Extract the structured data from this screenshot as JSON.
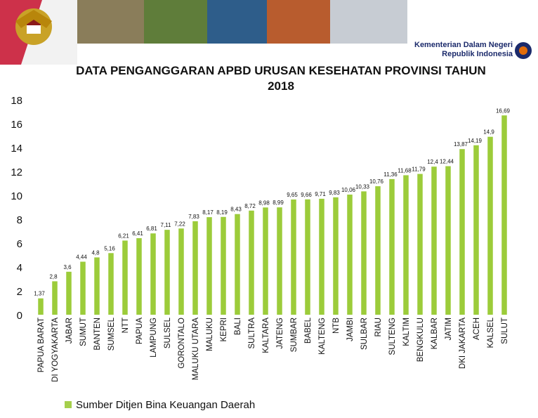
{
  "header": {
    "ministry_line1": "Kementerian Dalam Negeri",
    "ministry_line2": "Republik Indonesia"
  },
  "colors": {
    "bar": "#9ccc3a",
    "ministry_text": "#1b2a6b",
    "banner_red": "#c8102e"
  },
  "chart_data": {
    "type": "bar",
    "title": "DATA PENGANGGARAN APBD URUSAN KESEHATAN PROVINSI TAHUN 2018",
    "xlabel": "",
    "ylabel": "",
    "ylim": [
      0,
      18
    ],
    "yticks": [
      0,
      2,
      4,
      6,
      8,
      10,
      12,
      14,
      16,
      18
    ],
    "grid": false,
    "legend": "bottom",
    "categories": [
      "PAPUA BARAT",
      "DI YOGYAKARTA",
      "JABAR",
      "SUMUT",
      "BANTEN",
      "SUMSEL",
      "NTT",
      "PAPUA",
      "LAMPUNG",
      "SULSEL",
      "GORONTALO",
      "MALUKU UTARA",
      "MALUKU",
      "KEPRI",
      "BALI",
      "SULTRA",
      "KALTARA",
      "JATENG",
      "SUMBAR",
      "BABEL",
      "KALTENG",
      "NTB",
      "JAMBI",
      "SULBAR",
      "RIAU",
      "SULTENG",
      "KALTIM",
      "BENGKULU",
      "KALBAR",
      "JATIM",
      "DKI JAKARTA",
      "ACEH",
      "KALSEL",
      "SULUT"
    ],
    "values": [
      1.37,
      2.8,
      3.6,
      4.44,
      4.8,
      5.16,
      6.21,
      6.41,
      6.81,
      7.11,
      7.22,
      7.83,
      8.17,
      8.19,
      8.43,
      8.72,
      8.98,
      8.99,
      9.65,
      9.66,
      9.71,
      9.83,
      10.06,
      10.33,
      10.76,
      11.36,
      11.68,
      11.79,
      12.4,
      12.44,
      13.87,
      14.19,
      14.9,
      16.69
    ],
    "data_labels": [
      "1,37",
      "2,8",
      "3,6",
      "4,44",
      "4,8",
      "5,16",
      "6,21",
      "6,41",
      "6,81",
      "7,11",
      "7,22",
      "7,83",
      "8,17",
      "8,19",
      "8,43",
      "8,72",
      "8,98",
      "8,99",
      "9,65",
      "9,66",
      "9,71",
      "9,83",
      "10,06",
      "10,33",
      "10,76",
      "11,36",
      "11,68",
      "11,79",
      "12,4",
      "12,44",
      "13,87",
      "14,19",
      "14,9",
      "16,69"
    ],
    "series": [
      {
        "name": "Sumber Ditjen Bina Keuangan Daerah"
      }
    ]
  }
}
